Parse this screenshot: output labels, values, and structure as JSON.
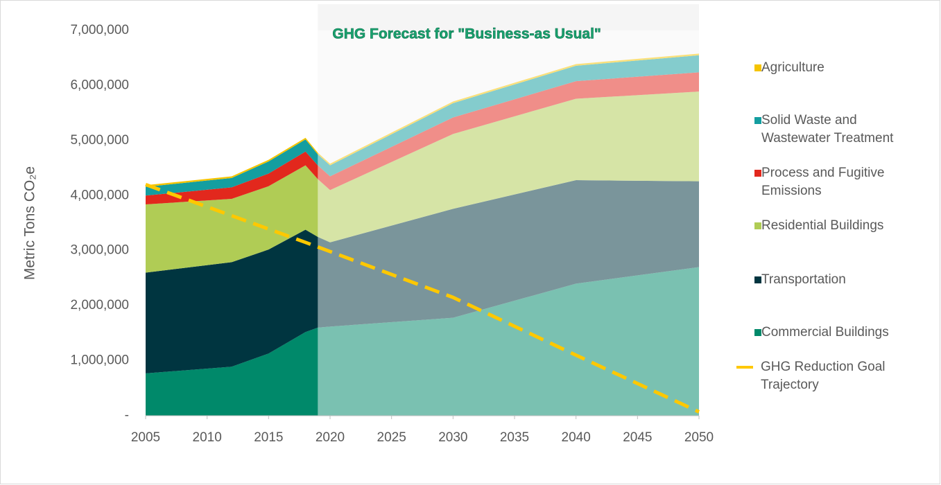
{
  "chart_data": {
    "type": "stacked_area",
    "y_label": "Metric Tons CO₂e",
    "forecast_region": {
      "label": "GHG Forecast for \"Business-as Usual\"",
      "start": 2019,
      "end": 2050
    },
    "x": [
      2005,
      2012,
      2015,
      2018,
      2019,
      2020,
      2030,
      2040,
      2050
    ],
    "series": [
      {
        "name": "Commercial Buildings",
        "color": "#00896a",
        "values": [
          770000,
          890000,
          1130000,
          1520000,
          1600000,
          1620000,
          1780000,
          2400000,
          2700000
        ]
      },
      {
        "name": "Transportation",
        "color": "#003540",
        "values": [
          1830000,
          1900000,
          1890000,
          1860000,
          1650000,
          1530000,
          1980000,
          1880000,
          1560000
        ]
      },
      {
        "name": "Residential Buildings",
        "color": "#b0cc55",
        "values": [
          1240000,
          1150000,
          1150000,
          1170000,
          1050000,
          950000,
          1360000,
          1480000,
          1630000
        ]
      },
      {
        "name": "Process and Fugitive Emissions",
        "color": "#e2281d",
        "values": [
          160000,
          210000,
          230000,
          250000,
          250000,
          250000,
          300000,
          320000,
          350000
        ]
      },
      {
        "name": "Solid Waste and Wastewater Treatment",
        "color": "#149ea0",
        "values": [
          160000,
          170000,
          220000,
          220000,
          200000,
          200000,
          260000,
          280000,
          310000
        ]
      },
      {
        "name": "Agriculture",
        "color": "#f5c400",
        "values": [
          30000,
          30000,
          30000,
          30000,
          30000,
          30000,
          30000,
          30000,
          30000
        ]
      }
    ],
    "goal": {
      "name": "GHG Reduction Goal Trajectory",
      "color": "#ffc800",
      "x": [
        2005,
        2018,
        2030,
        2040,
        2050
      ],
      "values": [
        4200000,
        3150000,
        2150000,
        1100000,
        70000
      ]
    },
    "xlim": [
      2005,
      2050
    ],
    "xticks": [
      2005,
      2010,
      2015,
      2020,
      2025,
      2030,
      2035,
      2040,
      2045,
      2050
    ],
    "ylim": [
      0,
      7000000
    ],
    "yticks": [
      {
        "value": 0,
        "label": "-"
      },
      {
        "value": 1000000,
        "label": "1,000,000"
      },
      {
        "value": 2000000,
        "label": "2,000,000"
      },
      {
        "value": 3000000,
        "label": "3,000,000"
      },
      {
        "value": 4000000,
        "label": "4,000,000"
      },
      {
        "value": 5000000,
        "label": "5,000,000"
      },
      {
        "value": 6000000,
        "label": "6,000,000"
      },
      {
        "value": 7000000,
        "label": "7,000,000"
      }
    ],
    "legend": "right"
  }
}
